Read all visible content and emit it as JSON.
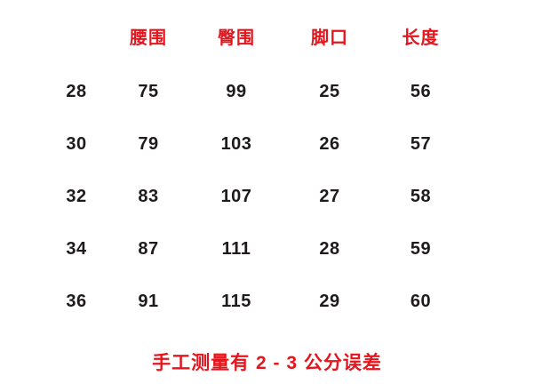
{
  "chart_data": {
    "type": "table",
    "columns": [
      "腰围",
      "臀围",
      "脚口",
      "长度"
    ],
    "row_label_description": "size",
    "rows": [
      [
        "28",
        "75",
        "99",
        "25",
        "56"
      ],
      [
        "30",
        "79",
        "103",
        "26",
        "57"
      ],
      [
        "32",
        "83",
        "107",
        "27",
        "58"
      ],
      [
        "34",
        "87",
        "111",
        "28",
        "59"
      ],
      [
        "36",
        "91",
        "115",
        "29",
        "60"
      ]
    ],
    "note": "手工测量有 2 - 3 公分误差"
  },
  "colors": {
    "header_red": "#e4151d",
    "value_black": "#1f1b1c",
    "background": "#ffffff"
  }
}
